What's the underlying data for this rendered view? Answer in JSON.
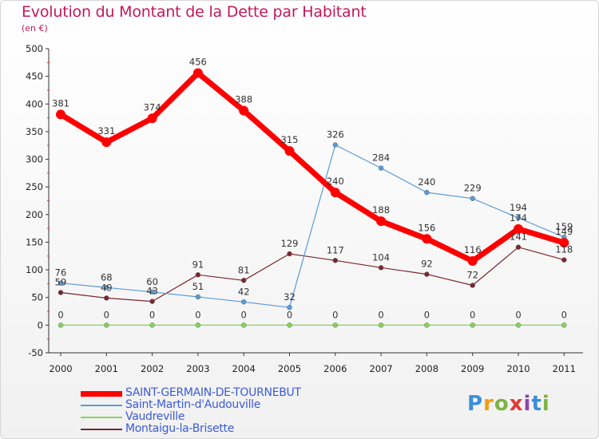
{
  "chart_data": {
    "type": "line",
    "title": "Evolution du Montant de la Dette par Habitant",
    "subtitle": "(en €)",
    "xlabel": "",
    "ylabel": "",
    "x": [
      "2000",
      "2001",
      "2002",
      "2003",
      "2004",
      "2005",
      "2006",
      "2007",
      "2008",
      "2009",
      "2010",
      "2011"
    ],
    "ylim": [
      -50,
      500
    ],
    "yticks": [
      -50,
      0,
      50,
      100,
      150,
      200,
      250,
      300,
      350,
      400,
      450,
      500
    ],
    "grid": false,
    "legend_position": "bottom-left",
    "series": [
      {
        "name": "SAINT-GERMAIN-DE-TOURNEBUT",
        "color": "#ff0000",
        "values": [
          381,
          331,
          374,
          456,
          388,
          315,
          240,
          188,
          156,
          116,
          174,
          149
        ]
      },
      {
        "name": "Saint-Martin-d'Audouville",
        "color": "#5b9bd5",
        "values": [
          76,
          68,
          60,
          51,
          42,
          32,
          326,
          284,
          240,
          229,
          194,
          159
        ]
      },
      {
        "name": "Vaudreville",
        "color": "#88d25c",
        "values": [
          0,
          0,
          0,
          0,
          0,
          0,
          0,
          0,
          0,
          0,
          0,
          0
        ]
      },
      {
        "name": "Montaigu-la-Brisette",
        "color": "#7b2630",
        "values": [
          59,
          49,
          43,
          91,
          81,
          129,
          117,
          104,
          92,
          72,
          141,
          118
        ]
      }
    ]
  },
  "logo": {
    "letters": [
      "P",
      "r",
      "o",
      "x",
      "i",
      "t",
      "i"
    ],
    "colors": [
      "#3a8fd9",
      "#f39c12",
      "#7cb342",
      "#e53935",
      "#8e44ad",
      "#3a8fd9",
      "#7cb342"
    ]
  }
}
